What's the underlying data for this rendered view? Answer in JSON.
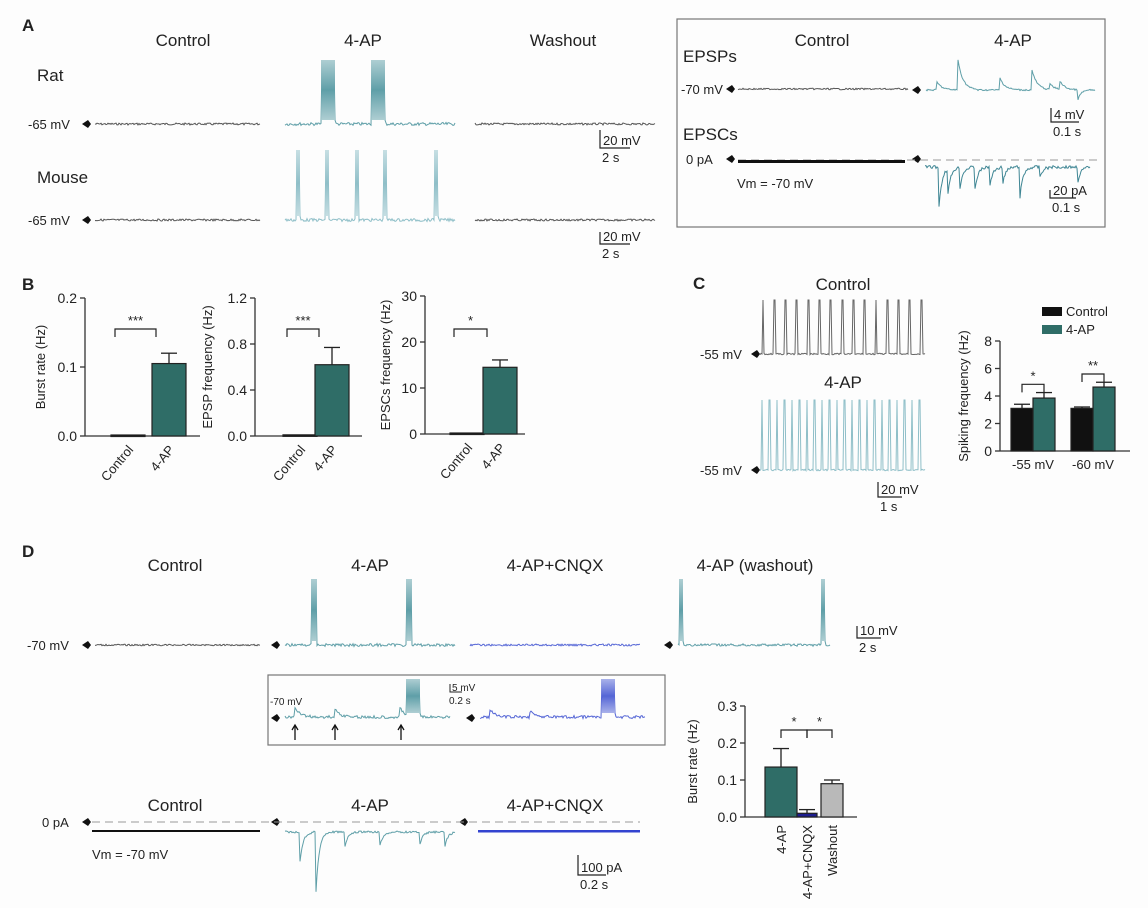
{
  "panel_labels": {
    "a": "A",
    "b": "B",
    "c": "C",
    "d": "D"
  },
  "panelA": {
    "conditions": [
      "Control",
      "4-AP",
      "Washout"
    ],
    "rows": [
      "Rat",
      "Mouse"
    ],
    "holding": "-65 mV",
    "scale_v": "20 mV",
    "scale_t": "2 s",
    "inset": {
      "conditions": [
        "Control",
        "4-AP"
      ],
      "epsps": "EPSPs",
      "epscs": "EPSCs",
      "v_label": "-70 mV",
      "i_label": "0 pA",
      "vm": "Vm = -70 mV",
      "scale_v": "4 mV",
      "scale_t1": "0.1 s",
      "scale_i": "20 pA",
      "scale_t2": "0.1 s"
    }
  },
  "panelC": {
    "conditions": [
      "Control",
      "4-AP"
    ],
    "holding": "-55 mV",
    "scale_v": "20 mV",
    "scale_t": "1 s"
  },
  "panelD": {
    "conditions": [
      "Control",
      "4-AP",
      "4-AP+CNQX",
      "4-AP (washout)"
    ],
    "holding": "-70 mV",
    "scale_v": "10 mV",
    "scale_t": "2 s",
    "inset": {
      "v_label": "-70 mV",
      "scale_v": "5 mV",
      "scale_t": "0.2 s"
    },
    "vc_conditions": [
      "Control",
      "4-AP",
      "4-AP+CNQX"
    ],
    "i_label": "0 pA",
    "vm": "Vm = -70 mV",
    "scale_i": "100 pA",
    "scale_t2": "0.2 s"
  },
  "colors": {
    "teal": "#2f6d67",
    "trace_teal": "#5f9fa8",
    "cnqx_trace": "#5566d6",
    "cnqx_bar": "#1c1c8e",
    "washout_bar": "#b9b9b9",
    "control_bar": "#111111"
  },
  "chart_data": [
    {
      "type": "bar",
      "panel": "B",
      "categories": [
        "Control",
        "4-AP"
      ],
      "values": [
        0.0,
        0.105
      ],
      "errors": [
        0,
        0.015
      ],
      "ylabel": "Burst rate (Hz)",
      "ylim": [
        0,
        0.2
      ],
      "yticks": [
        "0.0",
        "0.1",
        "0.2"
      ],
      "sig": "***"
    },
    {
      "type": "bar",
      "panel": "B",
      "categories": [
        "Control",
        "4-AP"
      ],
      "values": [
        0.01,
        0.62
      ],
      "errors": [
        0,
        0.15
      ],
      "ylabel": "EPSP frequency (Hz)",
      "ylim": [
        0,
        1.2
      ],
      "yticks": [
        "0.0",
        "0.4",
        "0.8",
        "1.2"
      ],
      "sig": "***"
    },
    {
      "type": "bar",
      "panel": "B",
      "categories": [
        "Control",
        "4-AP"
      ],
      "values": [
        0.1,
        14.5
      ],
      "errors": [
        0,
        1.6
      ],
      "ylabel": "EPSCs frequency (Hz)",
      "ylim": [
        0,
        30
      ],
      "yticks": [
        "0",
        "10",
        "20",
        "30"
      ],
      "sig": "*"
    },
    {
      "type": "bar",
      "panel": "C",
      "categories": [
        "-55 mV",
        "-60 mV"
      ],
      "series": [
        {
          "name": "Control",
          "values": [
            3.1,
            3.1
          ],
          "errors": [
            0.3,
            0.1
          ]
        },
        {
          "name": "4-AP",
          "values": [
            3.85,
            4.65
          ],
          "errors": [
            0.4,
            0.35
          ]
        }
      ],
      "ylabel": "Spiking frequency (Hz)",
      "ylim": [
        0,
        8
      ],
      "yticks": [
        "0",
        "2",
        "4",
        "6",
        "8"
      ],
      "sig": [
        "*",
        "**"
      ],
      "legend": "top-right"
    },
    {
      "type": "bar",
      "panel": "D",
      "categories": [
        "4-AP",
        "4-AP+CNQX",
        "Washout"
      ],
      "values": [
        0.135,
        0.01,
        0.09
      ],
      "errors": [
        0.05,
        0.01,
        0.01
      ],
      "ylabel": "Burst rate (Hz)",
      "ylim": [
        0,
        0.3
      ],
      "yticks": [
        "0.0",
        "0.1",
        "0.2",
        "0.3"
      ],
      "sig": [
        "*",
        "*"
      ]
    }
  ]
}
